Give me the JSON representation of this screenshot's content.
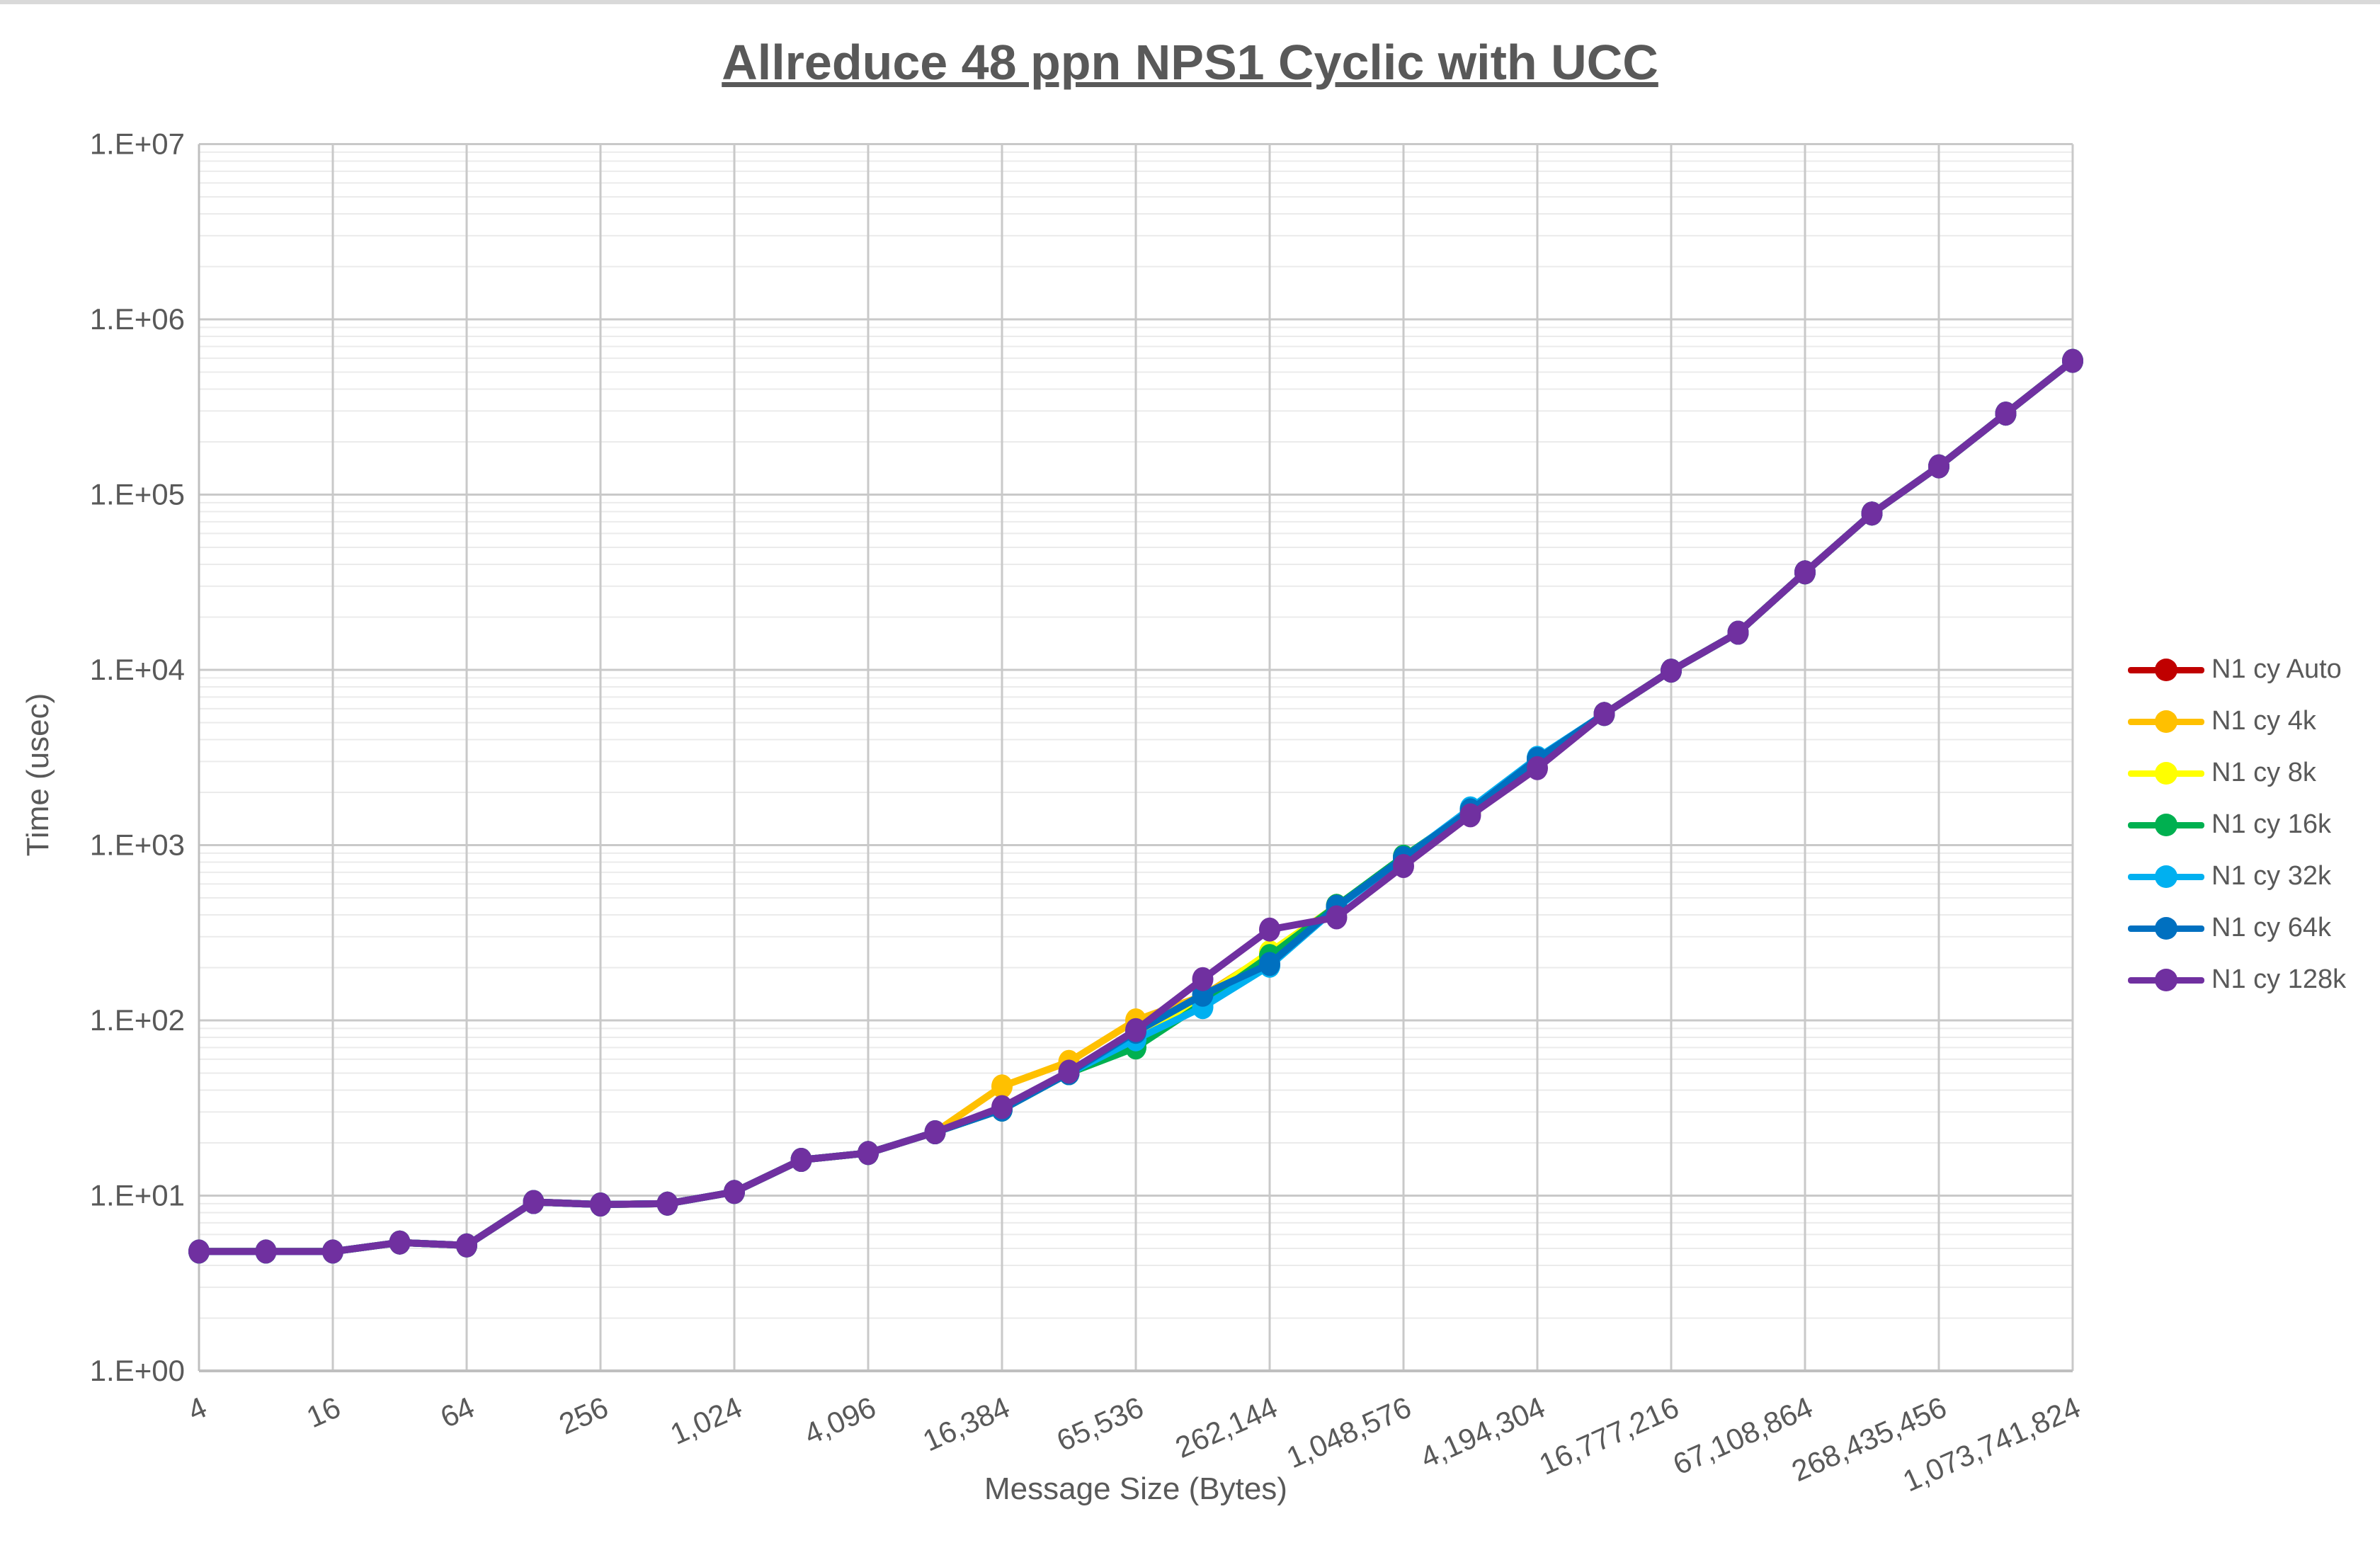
{
  "title": "Allreduce 48 ppn NPS1 Cyclic with UCC",
  "axes": {
    "x_title": "Message Size (Bytes)",
    "y_title": "Time (usec)"
  },
  "chart_data": {
    "type": "line",
    "title": "Allreduce 48 ppn NPS1 Cyclic with UCC",
    "xlabel": "Message Size (Bytes)",
    "ylabel": "Time (usec)",
    "x_scale": "log2",
    "y_scale": "log10",
    "ylim": [
      1,
      10000000
    ],
    "xlim": [
      4,
      1073741824
    ],
    "grid": "horizontal major+minor (log), vertical major every 4x",
    "legend_position": "right",
    "y_tick_labels": [
      "1.E+00",
      "1.E+01",
      "1.E+02",
      "1.E+03",
      "1.E+04",
      "1.E+05",
      "1.E+06",
      "1.E+07"
    ],
    "x_tick_labels": [
      "4",
      "16",
      "64",
      "256",
      "1,024",
      "4,096",
      "16,384",
      "65,536",
      "262,144",
      "1,048,576",
      "4,194,304",
      "16,777,216",
      "67,108,864",
      "268,435,456",
      "1,073,741,824"
    ],
    "x": [
      4,
      8,
      16,
      32,
      64,
      128,
      256,
      512,
      1024,
      2048,
      4096,
      8192,
      16384,
      32768,
      65536,
      131072,
      262144,
      524288,
      1048576,
      2097152,
      4194304,
      8388608,
      16777216,
      33554432,
      67108864,
      134217728,
      268435456,
      536870912,
      1073741824
    ],
    "series": [
      {
        "name": "N1 cy Auto",
        "color": "#C00000",
        "values": [
          4.8,
          4.8,
          4.8,
          5.4,
          5.2,
          9.2,
          8.9,
          9.0,
          10.5,
          16,
          17.5,
          23,
          31,
          50,
          84,
          134,
          240,
          445,
          850,
          1550,
          3100,
          5600,
          9900,
          16300,
          36000,
          78000,
          145000,
          290000,
          580000
        ]
      },
      {
        "name": "N1 cy 4k",
        "color": "#FFC000",
        "values": [
          4.8,
          4.8,
          4.8,
          5.4,
          5.2,
          9.2,
          8.9,
          9.0,
          10.5,
          16,
          17.5,
          23,
          42,
          58,
          100,
          138,
          240,
          450,
          850,
          1550,
          3100,
          5600,
          9900,
          16300,
          36000,
          78000,
          145000,
          290000,
          580000
        ]
      },
      {
        "name": "N1 cy 8k",
        "color": "#FFFF00",
        "values": [
          4.8,
          4.8,
          4.8,
          5.4,
          5.2,
          9.2,
          8.9,
          9.0,
          10.5,
          16,
          17.5,
          23,
          31,
          50,
          85,
          133,
          245,
          447,
          850,
          1550,
          3100,
          5600,
          9900,
          16300,
          36000,
          78000,
          145000,
          290000,
          580000
        ]
      },
      {
        "name": "N1 cy 16k",
        "color": "#00B050",
        "values": [
          4.8,
          4.8,
          4.8,
          5.4,
          5.2,
          9.2,
          8.9,
          9.0,
          10.5,
          16,
          17.5,
          23,
          31,
          50,
          70,
          125,
          233,
          450,
          860,
          1570,
          3100,
          5600,
          9900,
          16300,
          36000,
          78000,
          145000,
          290000,
          580000
        ]
      },
      {
        "name": "N1 cy 32k",
        "color": "#00B0F0",
        "values": [
          4.8,
          4.8,
          4.8,
          5.4,
          5.2,
          9.2,
          8.9,
          9.0,
          10.5,
          16,
          17.5,
          23,
          31,
          50,
          78,
          119,
          205,
          440,
          840,
          1620,
          3150,
          5600,
          9900,
          16300,
          36000,
          78000,
          145000,
          290000,
          580000
        ]
      },
      {
        "name": "N1 cy 64k",
        "color": "#0070C0",
        "values": [
          4.8,
          4.8,
          4.8,
          5.4,
          5.2,
          9.2,
          8.9,
          9.0,
          10.5,
          16,
          17.5,
          23,
          31,
          50,
          86,
          140,
          210,
          445,
          845,
          1580,
          3100,
          5600,
          9900,
          16300,
          36000,
          78000,
          145000,
          290000,
          580000
        ]
      },
      {
        "name": "N1 cy 128k",
        "color": "#7030A0",
        "values": [
          4.8,
          4.8,
          4.8,
          5.4,
          5.2,
          9.2,
          8.9,
          9.0,
          10.5,
          16,
          17.5,
          23,
          32,
          51,
          88,
          172,
          330,
          387,
          760,
          1480,
          2750,
          5600,
          9900,
          16300,
          36000,
          78000,
          145000,
          290000,
          580000
        ]
      }
    ]
  },
  "style": {
    "text_color": "#595959",
    "major_grid_color": "#C9C9C9",
    "minor_grid_color": "#EBEBEB",
    "axis_line_color": "#BFBFBF",
    "background": "#FFFFFF"
  }
}
